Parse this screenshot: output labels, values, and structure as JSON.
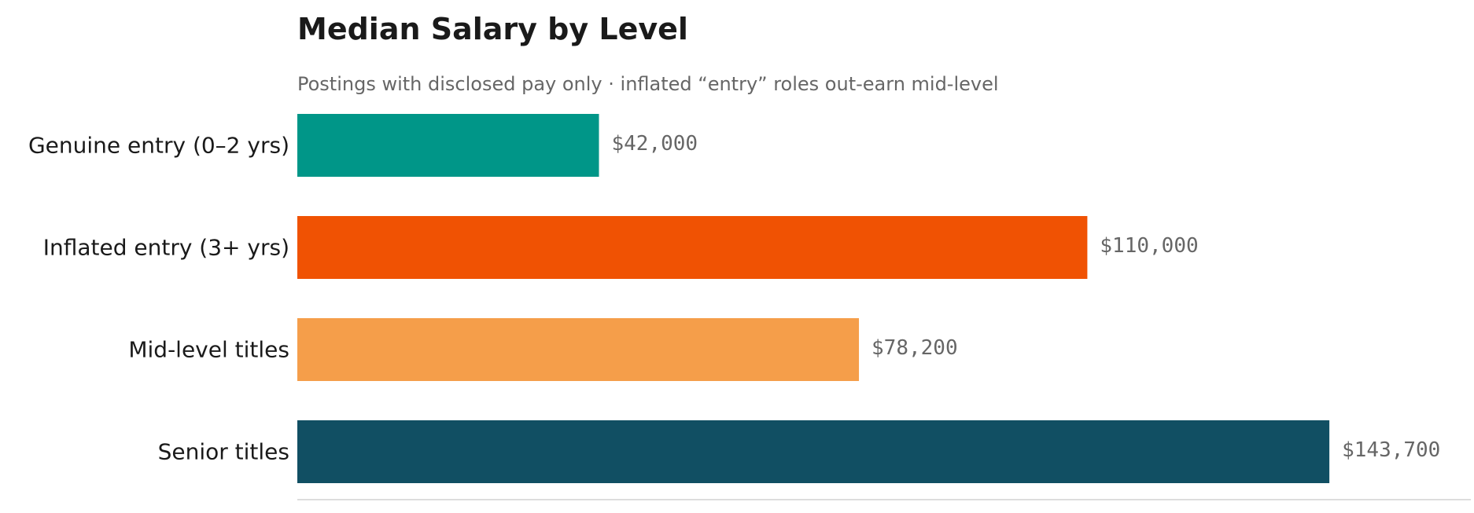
{
  "chart_data": {
    "type": "bar",
    "orientation": "horizontal",
    "title": "Median Salary by Level",
    "subtitle": "Postings with disclosed pay only · inflated “entry” roles out-earn mid-level",
    "categories": [
      "Genuine entry (0–2 yrs)",
      "Inflated entry (3+ yrs)",
      "Mid-level titles",
      "Senior titles"
    ],
    "values": [
      42000,
      110000,
      78200,
      143700
    ],
    "value_labels": [
      "$42,000",
      "$110,000",
      "$78,200",
      "$143,700"
    ],
    "colors": [
      "#009688",
      "#f05203",
      "#f59e4a",
      "#114f63"
    ],
    "xlim": [
      0,
      163400
    ],
    "grid": false,
    "legend": "none"
  }
}
